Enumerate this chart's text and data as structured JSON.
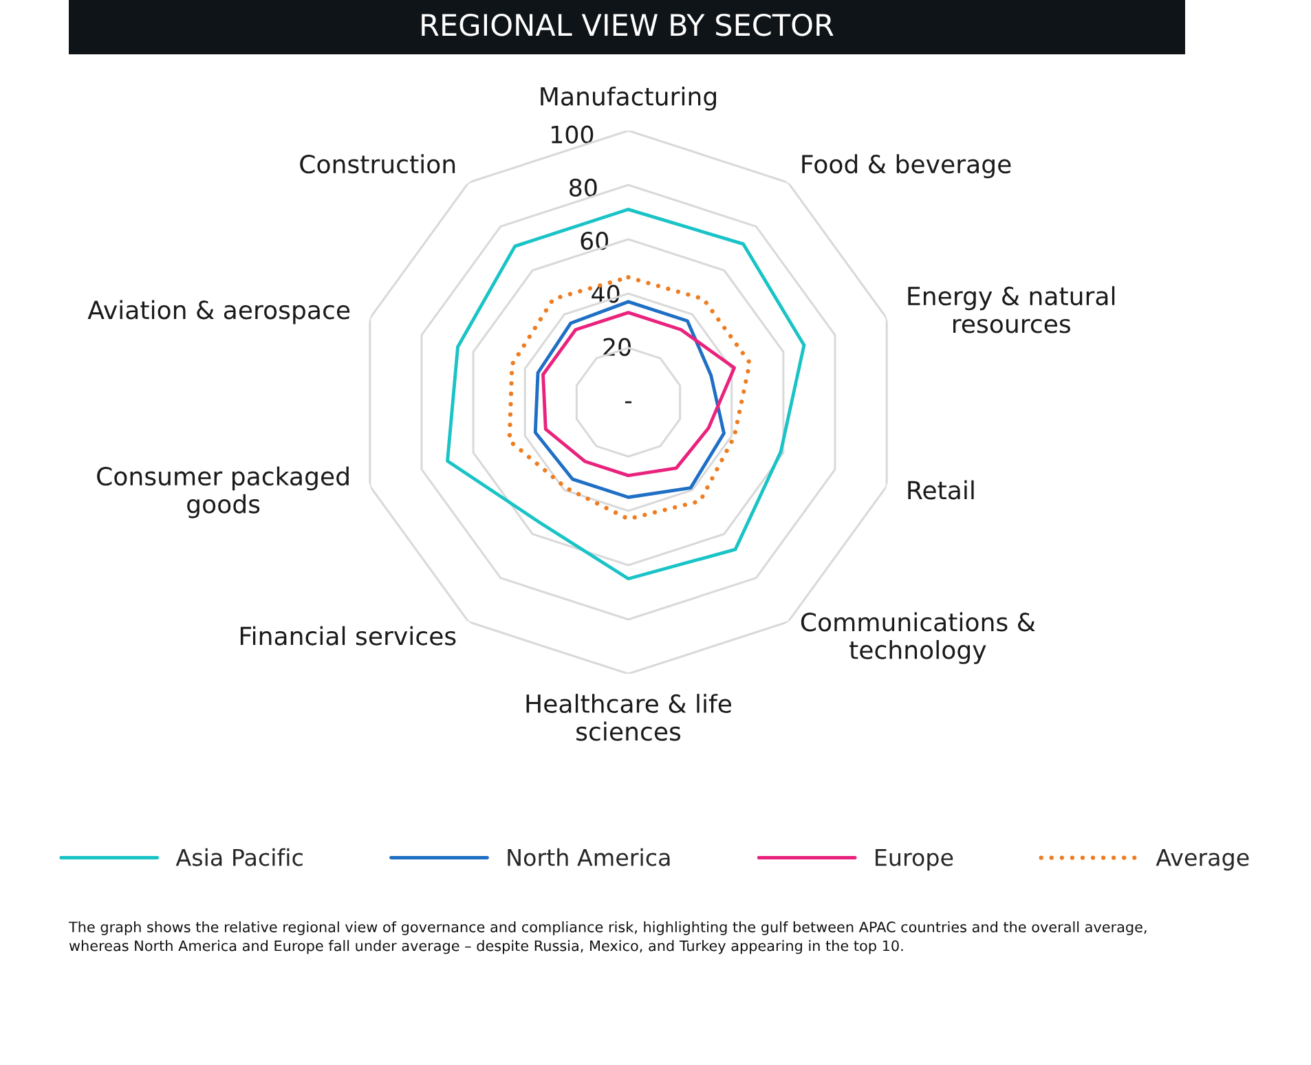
{
  "chart_data": {
    "type": "radar",
    "title": "REGIONAL VIEW BY SECTOR",
    "categories": [
      "Manufacturing",
      "Food & beverage",
      "Energy & natural\nresources",
      "Retail",
      "Communications &\ntechnology",
      "Healthcare & life\nsciences",
      "Financial services",
      "Consumer packaged\ngoods",
      "Aviation & aerospace",
      "Construction"
    ],
    "series": [
      {
        "name": "Asia Pacific",
        "color": "#19c3c6",
        "line_style": "solid",
        "values": [
          71,
          72,
          68,
          59,
          67,
          65,
          55,
          70,
          66,
          71
        ]
      },
      {
        "name": "North America",
        "color": "#1f6fc5",
        "line_style": "solid",
        "values": [
          37,
          37,
          32,
          37,
          39,
          35,
          35,
          36,
          35,
          36
        ]
      },
      {
        "name": "Europe",
        "color": "#e9237d",
        "line_style": "solid",
        "values": [
          33,
          33,
          41,
          31,
          30,
          27,
          27,
          32,
          33,
          33
        ]
      },
      {
        "name": "Average",
        "color": "#ee7d22",
        "line_style": "dotted",
        "values": [
          46,
          47,
          47,
          41,
          45,
          43,
          39,
          46,
          45,
          47
        ]
      }
    ],
    "ylim": [
      0,
      100
    ],
    "yticks": [
      {
        "value": 0,
        "label": "-"
      },
      20,
      40,
      60,
      80,
      100
    ],
    "grid": true,
    "legend": "bottom",
    "annotations": [
      "The graph shows the relative regional view of governance and compliance risk, highlighting the gulf between APAC countries and the overall average,\nwhereas North America and Europe fall under average – despite Russia, Mexico, and Turkey appearing in the top 10."
    ]
  }
}
